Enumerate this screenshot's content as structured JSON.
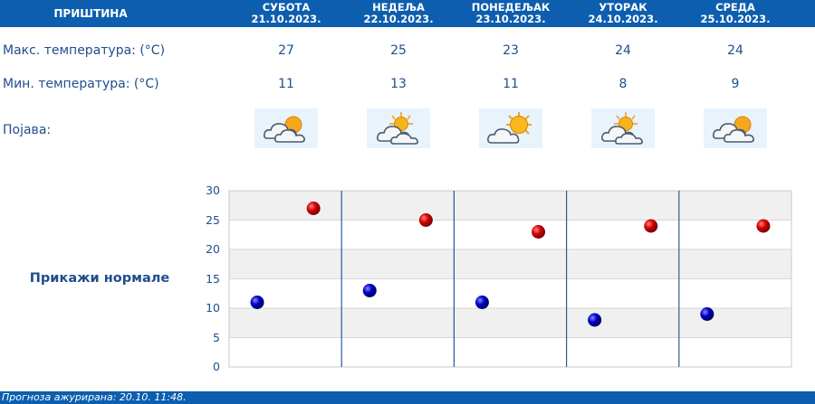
{
  "header": {
    "city": "ПРИШТИНА",
    "days": [
      {
        "name": "СУБОТА",
        "date": "21.10.2023."
      },
      {
        "name": "НЕДЕЉА",
        "date": "22.10.2023."
      },
      {
        "name": "ПОНЕДЕЉАК",
        "date": "23.10.2023."
      },
      {
        "name": "УТОРАК",
        "date": "24.10.2023."
      },
      {
        "name": "СРЕДА",
        "date": "25.10.2023."
      }
    ]
  },
  "rows": {
    "max_label": "Макс. температура: (°C)",
    "min_label": "Мин. температура: (°C)",
    "weather_label": "Појава:",
    "max": [
      "27",
      "25",
      "23",
      "24",
      "24"
    ],
    "min": [
      "11",
      "13",
      "11",
      "8",
      "9"
    ],
    "weather_icons": [
      "cloudy-sun-icon",
      "sun-cloud-icon",
      "sunny-icon",
      "sun-cloud-icon",
      "cloudy-sun-icon"
    ]
  },
  "normals_link": "Прикажи нормале",
  "chart_data": {
    "type": "scatter",
    "categories": [
      "21.10.2023.",
      "22.10.2023.",
      "23.10.2023.",
      "24.10.2023.",
      "25.10.2023."
    ],
    "series": [
      {
        "values": [
          27,
          25,
          23,
          24,
          24
        ],
        "color": "#cc0000"
      },
      {
        "values": [
          11,
          13,
          11,
          8,
          9
        ],
        "color": "#0000bb"
      }
    ],
    "ylim": [
      0,
      30
    ],
    "yticks": [
      "0",
      "5",
      "10",
      "15",
      "20",
      "25",
      "30"
    ],
    "grid": true
  },
  "footer": "Прогноза ажурирана:  20.10. 11:48.",
  "colors": {
    "accent": "#0d5eae",
    "text": "#1f4e8c",
    "max_point": "#cc0000",
    "min_point": "#0000bb"
  }
}
